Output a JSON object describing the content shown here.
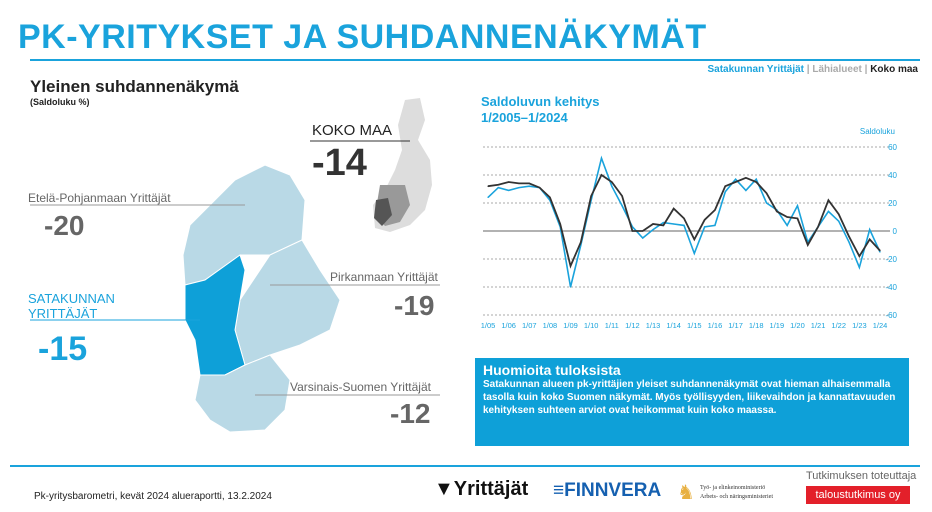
{
  "header": {
    "title": "PK-YRITYKSET JA SUHDANNENÄKYMÄT",
    "nav": [
      {
        "label": "Satakunnan Yrittäjät"
      },
      {
        "label": "Lähialueet"
      },
      {
        "label": "Koko maa"
      }
    ]
  },
  "left": {
    "subtitle": "Yleinen suhdannenäkymä",
    "unit": "(Saldoluku %)",
    "regions": [
      {
        "name": "KOKO MAA",
        "value": "-14"
      },
      {
        "name": "Etelä-Pohjanmaan Yrittäjät",
        "value": "-20"
      },
      {
        "name": "Pirkanmaan Yrittäjät",
        "value": "-19"
      },
      {
        "name": "SATAKUNNAN YRITTÄJÄT",
        "value": "-15"
      },
      {
        "name": "Varsinais-Suomen Yrittäjät",
        "value": "-12"
      }
    ]
  },
  "colors": {
    "accent": "#1aa3dc",
    "satakunta": "#0ea0d8",
    "neighbor": "#b9d9e6",
    "national": "#333333"
  },
  "chart_data": {
    "type": "line",
    "title": "Saldoluvun kehitys",
    "subtitle": "1/2005–1/2024",
    "ylabel": "Saldoluku",
    "ylim": [
      -60,
      60
    ],
    "yticks": [
      60,
      40,
      20,
      0,
      -20,
      -40,
      -60
    ],
    "xticks": [
      "1/05",
      "1/06",
      "1/07",
      "1/08",
      "1/09",
      "1/10",
      "1/11",
      "1/12",
      "1/13",
      "1/14",
      "1/15",
      "1/16",
      "1/17",
      "1/18",
      "1/19",
      "1/20",
      "1/21",
      "1/22",
      "1/23",
      "1/24"
    ],
    "series": [
      {
        "name": "Satakunta",
        "color": "#1aa3dc",
        "values": [
          24,
          31,
          29,
          31,
          32,
          31,
          22,
          3,
          -40,
          -10,
          22,
          52,
          32,
          18,
          3,
          -5,
          1,
          6,
          5,
          4,
          -16,
          3,
          4,
          28,
          37,
          29,
          37,
          20,
          15,
          4,
          18,
          -8,
          3,
          14,
          7,
          -8,
          -26,
          1,
          -15
        ]
      },
      {
        "name": "Koko maa",
        "color": "#333333",
        "values": [
          32,
          33,
          35,
          34,
          34,
          31,
          24,
          5,
          -25,
          -8,
          25,
          40,
          35,
          25,
          0,
          0,
          5,
          4,
          16,
          9,
          -6,
          8,
          15,
          32,
          35,
          38,
          35,
          27,
          14,
          10,
          9,
          -10,
          3,
          22,
          12,
          -4,
          -18,
          -6,
          -14
        ]
      }
    ]
  },
  "notes": {
    "title": "Huomioita tuloksista",
    "text": "Satakunnan alueen pk-yrittäjien yleiset suhdannenäkymät ovat hieman alhaisemmalla tasolla kuin koko Suomen näkymät. Myös työllisyyden, liikevaihdon ja kannattavuuden kehityksen suhteen arviot ovat heikommat kuin koko maassa."
  },
  "footer": {
    "text": "Pk-yritysbarometri, kevät 2024 alueraportti, 13.2.2024",
    "logos": [
      "Yrittäjät",
      "FINNVERA",
      "Työ- ja elinkeinoministeriö",
      "Arbets- och näringsministeriet"
    ],
    "credit": "Tutkimuksen toteuttaja",
    "partner": "taloustutkimus oy"
  }
}
